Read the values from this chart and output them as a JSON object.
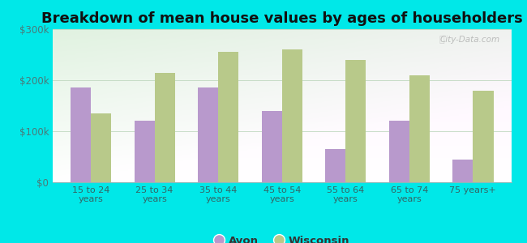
{
  "title": "Breakdown of mean house values by ages of householders",
  "categories": [
    "15 to 24\nyears",
    "25 to 34\nyears",
    "35 to 44\nyears",
    "45 to 54\nyears",
    "55 to 64\nyears",
    "65 to 74\nyears",
    "75 years+"
  ],
  "avon_values": [
    185000,
    120000,
    185000,
    140000,
    65000,
    120000,
    45000
  ],
  "wisconsin_values": [
    135000,
    215000,
    255000,
    260000,
    240000,
    210000,
    180000
  ],
  "avon_color": "#b899cc",
  "wisconsin_color": "#b8c98a",
  "background_color": "#00e8e8",
  "ylim": [
    0,
    300000
  ],
  "yticks": [
    0,
    100000,
    200000,
    300000
  ],
  "ytick_labels": [
    "$0",
    "$100k",
    "$200k",
    "$300k"
  ],
  "legend_labels": [
    "Avon",
    "Wisconsin"
  ],
  "title_fontsize": 13,
  "bar_width": 0.32,
  "watermark": "City-Data.com"
}
